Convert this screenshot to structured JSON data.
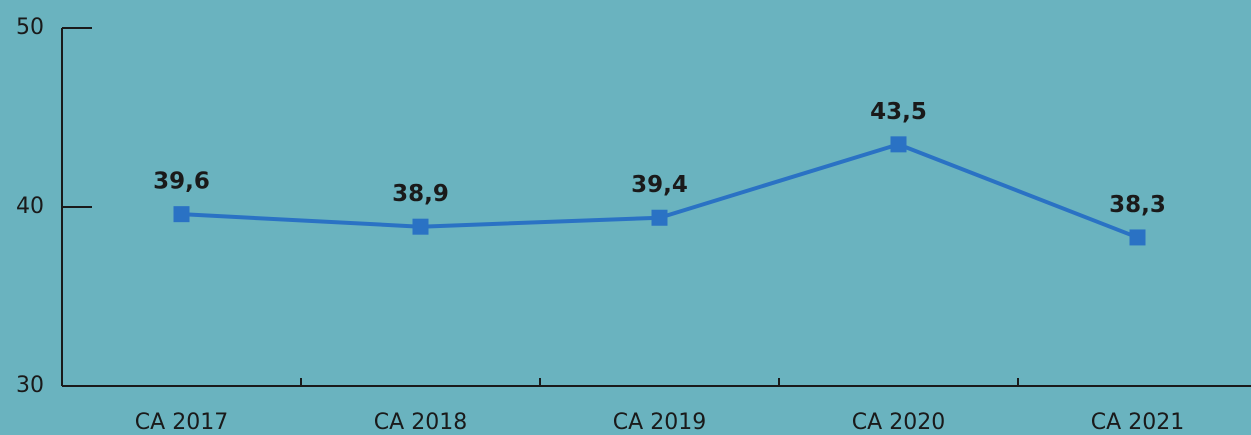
{
  "chart_data": {
    "type": "line",
    "categories": [
      "CA 2017",
      "CA 2018",
      "CA 2019",
      "CA 2020",
      "CA 2021"
    ],
    "series": [
      {
        "name": "value",
        "color": "#2a72c4",
        "values": [
          39.6,
          38.9,
          39.4,
          43.5,
          38.3
        ],
        "value_labels": [
          "39,6",
          "38,9",
          "39,4",
          "43,5",
          "38,3"
        ]
      }
    ],
    "ylim": [
      30,
      50
    ],
    "yticks": [
      30,
      40,
      50
    ]
  }
}
